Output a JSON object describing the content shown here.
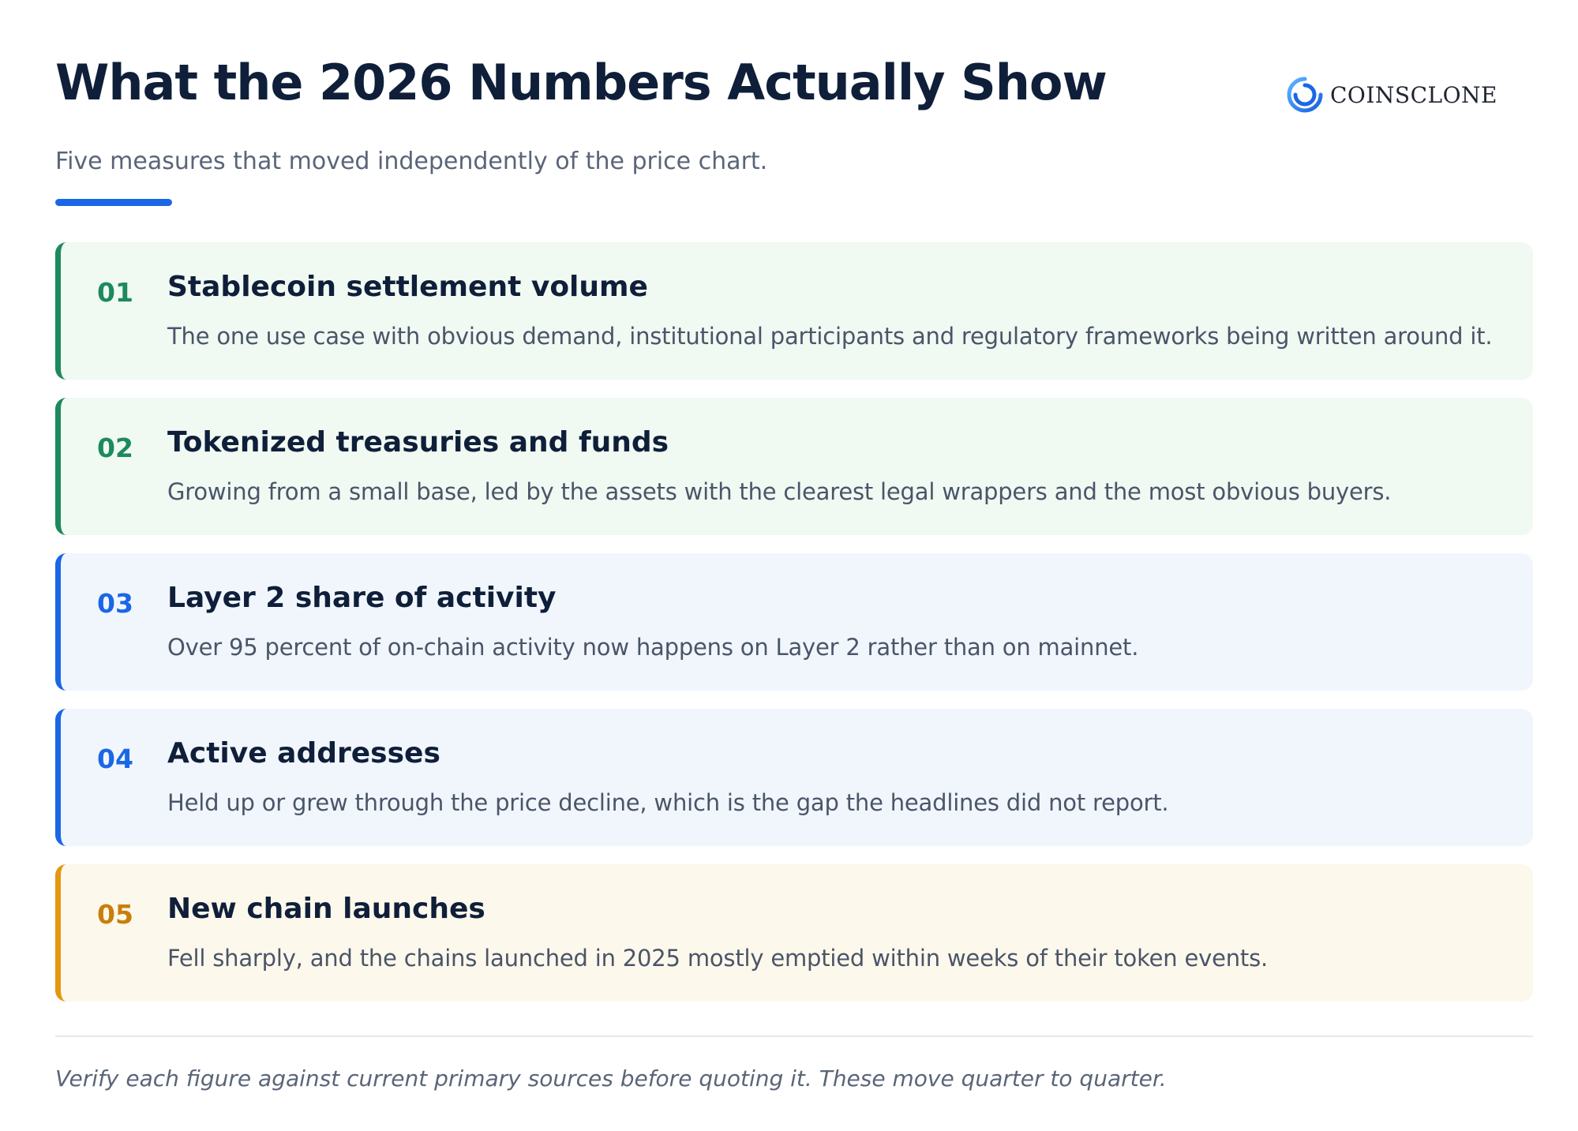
{
  "header": {
    "title": "What the 2026 Numbers Actually Show",
    "subtitle": "Five measures that moved independently of the price chart.",
    "logo_icon": "coinsclone-ring-icon",
    "logo_text": "COINSCLONE",
    "accent_color": "#1a67e6"
  },
  "items": [
    {
      "number": "01",
      "title": "Stablecoin settlement volume",
      "description": "The one use case with obvious demand, institutional participants and regulatory frameworks being written around it.",
      "color": "#1c8a5c"
    },
    {
      "number": "02",
      "title": "Tokenized treasuries and funds",
      "description": "Growing from a small base, led by the assets with the clearest legal wrappers and the most obvious buyers.",
      "color": "#1c8a5c"
    },
    {
      "number": "03",
      "title": "Layer 2 share of activity",
      "description": "Over 95 percent of on-chain activity now happens on Layer 2 rather than on mainnet.",
      "color": "#1a67e6"
    },
    {
      "number": "04",
      "title": "Active addresses",
      "description": "Held up or grew through the price decline, which is the gap the headlines did not report.",
      "color": "#1a67e6"
    },
    {
      "number": "05",
      "title": "New chain launches",
      "description": "Fell sharply, and the chains launched in 2025 mostly emptied within weeks of their token events.",
      "color": "#e6970f"
    }
  ],
  "footer": {
    "note": "Verify each figure against current primary sources before quoting it. These move quarter to quarter."
  }
}
